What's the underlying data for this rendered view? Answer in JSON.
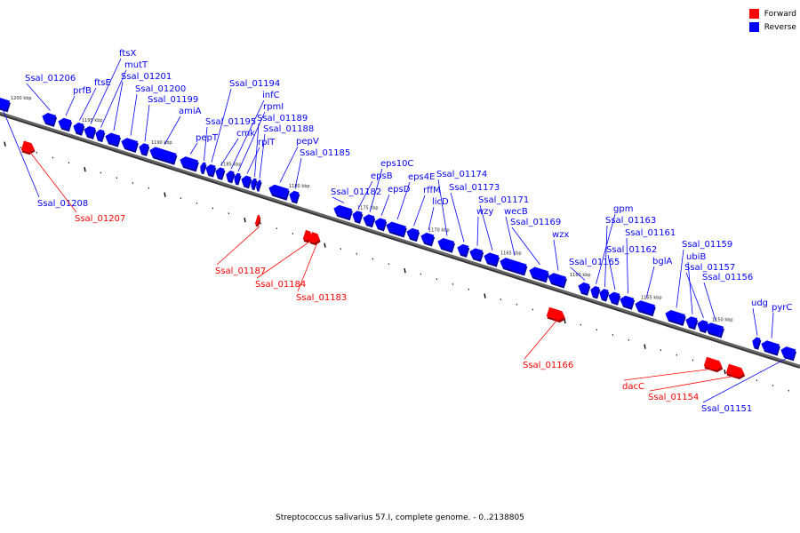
{
  "colors": {
    "forward": "#ff0000",
    "reverse": "#0000ff",
    "backbone": "#666666"
  },
  "legend": {
    "forward": "Forward",
    "reverse": "Reverse"
  },
  "caption": "Streptococcus salivarius 57.I, complete genome. - 0..2138805",
  "kbp_ticks": [
    "1200 kbp",
    "1195 kbp",
    "1190 kbp",
    "1185 kbp",
    "1180 kbp",
    "1175 kbp",
    "1170 kbp",
    "1165 kbp",
    "1160 kbp",
    "1155 kbp",
    "1150 kbp"
  ],
  "genes": [
    {
      "name": "Ssal_01208",
      "strand": "reverse"
    },
    {
      "name": "Ssal_01207",
      "strand": "forward"
    },
    {
      "name": "Ssal_01206",
      "strand": "reverse"
    },
    {
      "name": "prfB",
      "strand": "reverse"
    },
    {
      "name": "ftsE",
      "strand": "reverse"
    },
    {
      "name": "ftsX",
      "strand": "reverse"
    },
    {
      "name": "mutT",
      "strand": "reverse"
    },
    {
      "name": "Ssal_01201",
      "strand": "reverse"
    },
    {
      "name": "Ssal_01200",
      "strand": "reverse"
    },
    {
      "name": "Ssal_01199",
      "strand": "reverse"
    },
    {
      "name": "amiA",
      "strand": "reverse"
    },
    {
      "name": "pepT",
      "strand": "reverse"
    },
    {
      "name": "Ssal_01195",
      "strand": "reverse"
    },
    {
      "name": "Ssal_01194",
      "strand": "reverse"
    },
    {
      "name": "cmk",
      "strand": "reverse"
    },
    {
      "name": "infC",
      "strand": "reverse"
    },
    {
      "name": "rpmI",
      "strand": "reverse"
    },
    {
      "name": "rplT",
      "strand": "reverse"
    },
    {
      "name": "Ssal_01189",
      "strand": "reverse"
    },
    {
      "name": "Ssal_01188",
      "strand": "reverse"
    },
    {
      "name": "Ssal_01187",
      "strand": "forward"
    },
    {
      "name": "pepV",
      "strand": "reverse"
    },
    {
      "name": "Ssal_01185",
      "strand": "reverse"
    },
    {
      "name": "Ssal_01184",
      "strand": "forward"
    },
    {
      "name": "Ssal_01183",
      "strand": "forward"
    },
    {
      "name": "Ssal_01182",
      "strand": "reverse"
    },
    {
      "name": "epsB",
      "strand": "reverse"
    },
    {
      "name": "eps10C",
      "strand": "reverse"
    },
    {
      "name": "epsD",
      "strand": "reverse"
    },
    {
      "name": "eps4E",
      "strand": "reverse"
    },
    {
      "name": "rffM",
      "strand": "reverse"
    },
    {
      "name": "licD",
      "strand": "reverse"
    },
    {
      "name": "Ssal_01174",
      "strand": "reverse"
    },
    {
      "name": "Ssal_01173",
      "strand": "reverse"
    },
    {
      "name": "wzy",
      "strand": "reverse"
    },
    {
      "name": "Ssal_01171",
      "strand": "reverse"
    },
    {
      "name": "wecB",
      "strand": "reverse"
    },
    {
      "name": "Ssal_01169",
      "strand": "reverse"
    },
    {
      "name": "wzx",
      "strand": "reverse"
    },
    {
      "name": "Ssal_01166",
      "strand": "forward"
    },
    {
      "name": "Ssal_01165",
      "strand": "reverse"
    },
    {
      "name": "gpm",
      "strand": "reverse"
    },
    {
      "name": "Ssal_01163",
      "strand": "reverse"
    },
    {
      "name": "Ssal_01162",
      "strand": "reverse"
    },
    {
      "name": "Ssal_01161",
      "strand": "reverse"
    },
    {
      "name": "bglA",
      "strand": "reverse"
    },
    {
      "name": "Ssal_01159",
      "strand": "reverse"
    },
    {
      "name": "ubiB",
      "strand": "reverse"
    },
    {
      "name": "Ssal_01157",
      "strand": "reverse"
    },
    {
      "name": "Ssal_01156",
      "strand": "reverse"
    },
    {
      "name": "dacC",
      "strand": "forward"
    },
    {
      "name": "Ssal_01154",
      "strand": "forward"
    },
    {
      "name": "udg",
      "strand": "reverse"
    },
    {
      "name": "pyrC",
      "strand": "reverse"
    },
    {
      "name": "Ssal_01151",
      "strand": "reverse"
    }
  ]
}
